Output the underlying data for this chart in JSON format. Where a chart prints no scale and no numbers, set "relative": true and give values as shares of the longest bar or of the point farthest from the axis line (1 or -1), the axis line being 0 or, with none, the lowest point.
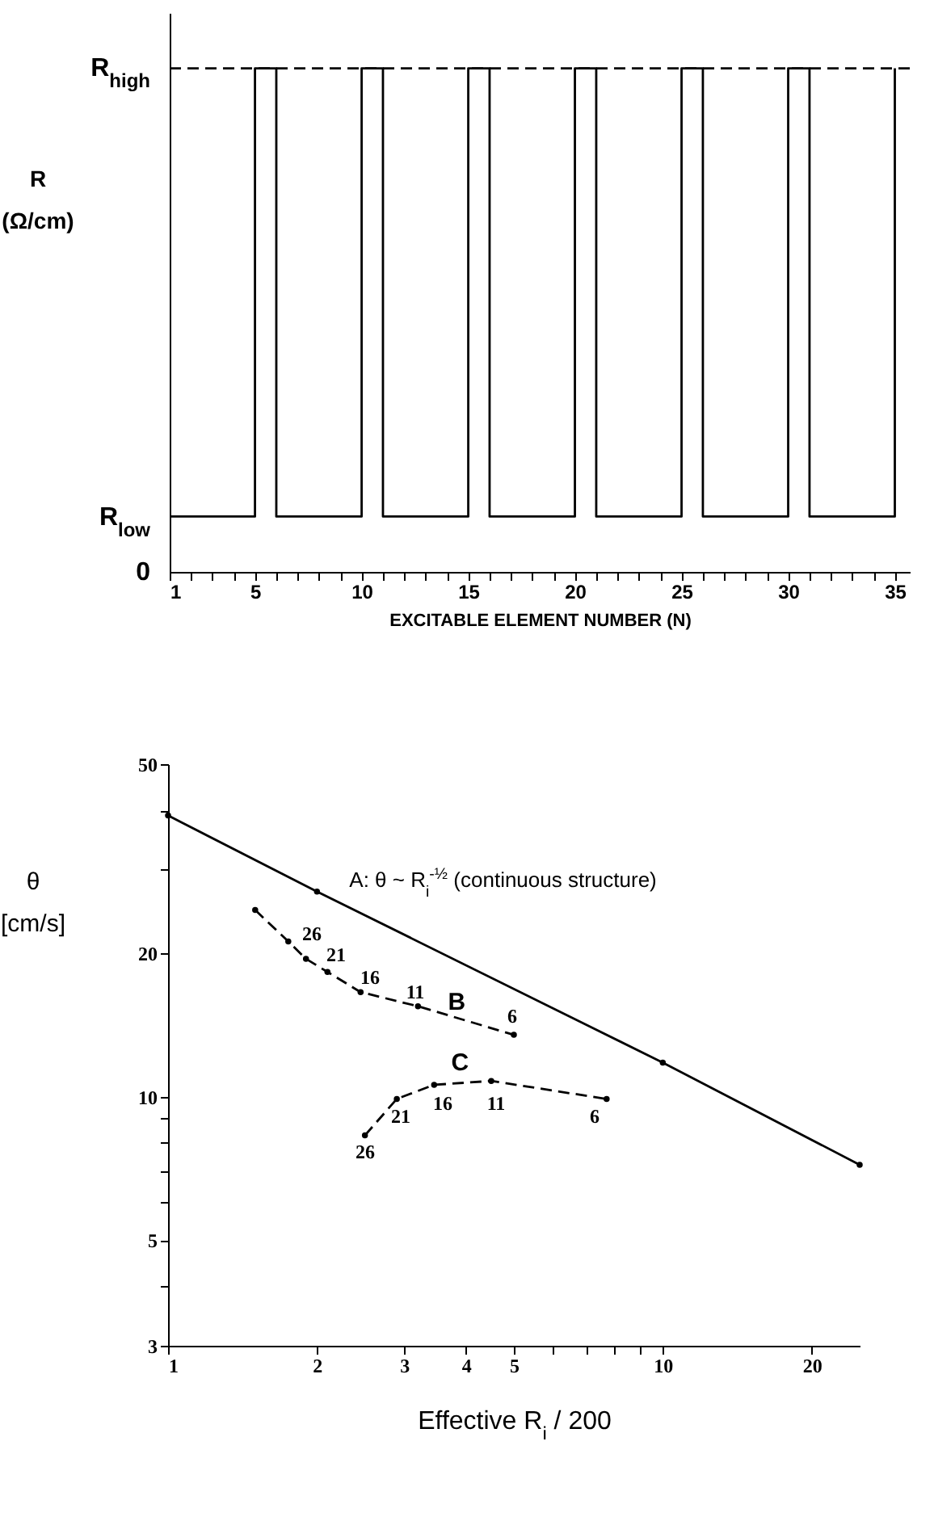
{
  "chart_data": [
    {
      "type": "step",
      "relative": true,
      "xlabel": "EXCITABLE ELEMENT NUMBER (N)",
      "ylabel": "R\n(Ω/cm)",
      "x": [
        1,
        5,
        6,
        10,
        11,
        15,
        16,
        20,
        21,
        25,
        26,
        30,
        31,
        35
      ],
      "series": [
        {
          "color": "#000000",
          "values": [
            0.11,
            1,
            0.11,
            1,
            0.11,
            1,
            0.11,
            1,
            0.11,
            1,
            0.11,
            1,
            0.11,
            1
          ]
        }
      ],
      "xlim": [
        1,
        35.7
      ],
      "xticks": [
        1,
        {
          "value": 2,
          "label": null
        },
        {
          "value": 3,
          "label": null
        },
        {
          "value": 4,
          "label": null
        },
        5,
        {
          "value": 6,
          "label": null
        },
        {
          "value": 7,
          "label": null
        },
        {
          "value": 8,
          "label": null
        },
        {
          "value": 9,
          "label": null
        },
        10,
        {
          "value": 11,
          "label": null
        },
        {
          "value": 12,
          "label": null
        },
        {
          "value": 13,
          "label": null
        },
        {
          "value": 14,
          "label": null
        },
        15,
        {
          "value": 16,
          "label": null
        },
        {
          "value": 17,
          "label": null
        },
        {
          "value": 18,
          "label": null
        },
        {
          "value": 19,
          "label": null
        },
        20,
        {
          "value": 21,
          "label": null
        },
        {
          "value": 22,
          "label": null
        },
        {
          "value": 23,
          "label": null
        },
        {
          "value": 24,
          "label": null
        },
        25,
        {
          "value": 26,
          "label": null
        },
        {
          "value": 27,
          "label": null
        },
        {
          "value": 28,
          "label": null
        },
        {
          "value": 29,
          "label": null
        },
        30,
        {
          "value": 31,
          "label": null
        },
        {
          "value": 32,
          "label": null
        },
        {
          "value": 33,
          "label": null
        },
        {
          "value": 34,
          "label": null
        },
        35
      ],
      "ref_lines": [
        {
          "axis": "y",
          "value": 1,
          "line_style": "dashed",
          "color": "#000000"
        }
      ],
      "annotations": [
        "R$_{high}$",
        "R$_{low}$",
        "0"
      ],
      "marker": "none"
    },
    {
      "type": "line",
      "xlabel": "Effective R$_{i}$ / 200",
      "ylabel": "θ\n[cm/s]",
      "log": "xy",
      "marker": "circle",
      "series": [
        {
          "name": "A: θ ~ R$_{i}$$^{-½}$ (continuous structure)",
          "color": "#000000",
          "line_style": "solid",
          "x": [
            1,
            2,
            10,
            25
          ],
          "values": [
            39,
            27,
            11.8,
            7.2
          ]
        },
        {
          "name": "B",
          "color": "#000000",
          "line_style": "dashed",
          "x": [
            1.5,
            1.75,
            1.9,
            2.1,
            2.45,
            3.2,
            5
          ],
          "values": [
            24.7,
            21.2,
            19.5,
            18.3,
            16.6,
            15.5,
            13.5
          ]
        },
        {
          "name": "C",
          "color": "#000000",
          "line_style": "dashed",
          "x": [
            2.5,
            2.9,
            3.45,
            4.5,
            7.7
          ],
          "values": [
            8.3,
            9.9,
            10.6,
            10.8,
            9.9
          ]
        }
      ],
      "annotations": [
        "26",
        "21",
        "16",
        "11",
        "6",
        "26",
        "21",
        "16",
        "11",
        "6"
      ],
      "xlim": [
        1,
        25
      ],
      "xticks": [
        1,
        2,
        3,
        4,
        5,
        {
          "value": 6,
          "label": null
        },
        {
          "value": 7,
          "label": null
        },
        {
          "value": 8,
          "label": null
        },
        {
          "value": 9,
          "label": null
        },
        10,
        20
      ],
      "ylim": [
        3,
        50
      ],
      "yticks": [
        3,
        {
          "value": 4,
          "label": null
        },
        5,
        {
          "value": 6,
          "label": null
        },
        {
          "value": 7,
          "label": null
        },
        {
          "value": 8,
          "label": null
        },
        {
          "value": 9,
          "label": null
        },
        10,
        20,
        {
          "value": 30,
          "label": null
        },
        {
          "value": 40,
          "label": null
        },
        50
      ]
    }
  ]
}
